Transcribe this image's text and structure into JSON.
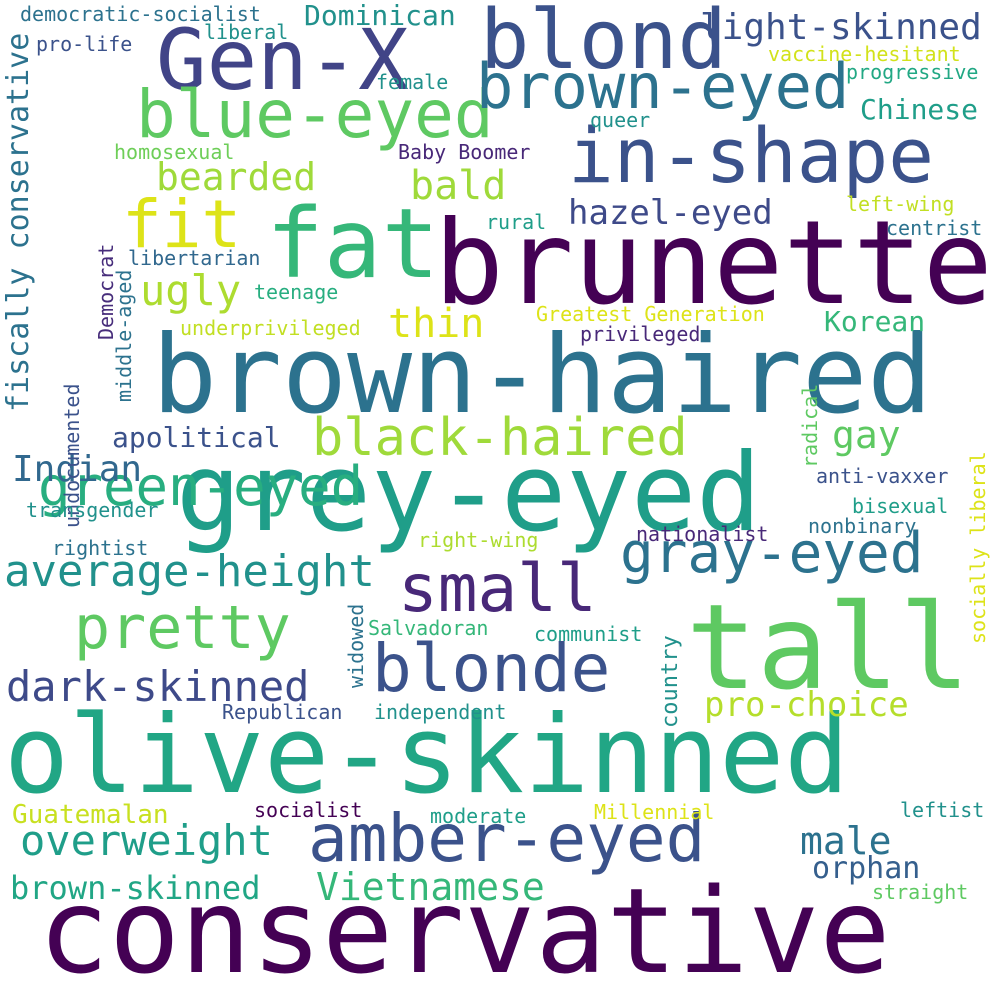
{
  "palette": {
    "purple_dark": "#440154",
    "indigo": "#3b528b",
    "blue_teal": "#2c728e",
    "teal": "#21918c",
    "green_teal": "#28ae80",
    "green": "#5ec962",
    "lime": "#addc30",
    "yellow": "#dde318",
    "background": "#ffffff"
  },
  "words": [
    {
      "text": "conservative",
      "color": "#440154"
    },
    {
      "text": "olive-skinned",
      "color": "#21a685"
    },
    {
      "text": "brown-haired",
      "color": "#2c728e"
    },
    {
      "text": "grey-eyed",
      "color": "#1f9e89"
    },
    {
      "text": "brunette",
      "color": "#440154"
    },
    {
      "text": "tall",
      "color": "#5ec962"
    },
    {
      "text": "fat",
      "color": "#35b779"
    },
    {
      "text": "blond",
      "color": "#3b528b"
    },
    {
      "text": "Gen-X",
      "color": "#414487"
    },
    {
      "text": "in-shape",
      "color": "#3b528b"
    },
    {
      "text": "blue-eyed",
      "color": "#5ec962"
    },
    {
      "text": "brown-eyed",
      "color": "#2c728e"
    },
    {
      "text": "fit",
      "color": "#dde318"
    },
    {
      "text": "amber-eyed",
      "color": "#3b528b"
    },
    {
      "text": "blonde",
      "color": "#3b528b"
    },
    {
      "text": "small",
      "color": "#482878"
    },
    {
      "text": "black-haired",
      "color": "#9fda3a"
    },
    {
      "text": "gray-eyed",
      "color": "#2c728e"
    },
    {
      "text": "pretty",
      "color": "#5ec962"
    },
    {
      "text": "green-eyed",
      "color": "#28ae80"
    },
    {
      "text": "average-height",
      "color": "#21918c"
    },
    {
      "text": "dark-skinned",
      "color": "#3e4a89"
    },
    {
      "text": "overweight",
      "color": "#1f9e89"
    },
    {
      "text": "Vietnamese",
      "color": "#35b779"
    },
    {
      "text": "brown-skinned",
      "color": "#21a685"
    },
    {
      "text": "bald",
      "color": "#9fda3a"
    },
    {
      "text": "bearded",
      "color": "#9fda3a"
    },
    {
      "text": "ugly",
      "color": "#addc30"
    },
    {
      "text": "thin",
      "color": "#dde318"
    },
    {
      "text": "hazel-eyed",
      "color": "#3e4a89"
    },
    {
      "text": "light-skinned",
      "color": "#3b528b"
    },
    {
      "text": "male",
      "color": "#2c728e"
    },
    {
      "text": "orphan",
      "color": "#355f8d"
    },
    {
      "text": "Indian",
      "color": "#31688e"
    },
    {
      "text": "gay",
      "color": "#5ec962"
    },
    {
      "text": "pro-choice",
      "color": "#b5de2b"
    },
    {
      "text": "fiscally conservative",
      "color": "#2c728e"
    },
    {
      "text": "Dominican",
      "color": "#21918c"
    },
    {
      "text": "Chinese",
      "color": "#1f9e89"
    },
    {
      "text": "Korean",
      "color": "#35b779"
    },
    {
      "text": "apolitical",
      "color": "#3b528b"
    },
    {
      "text": "Guatemalan",
      "color": "#c8e020"
    },
    {
      "text": "democratic-socialist",
      "color": "#2c728e"
    },
    {
      "text": "country",
      "color": "#21918c"
    },
    {
      "text": "communist",
      "color": "#1f9e89"
    },
    {
      "text": "pro-life",
      "color": "#3b528b"
    },
    {
      "text": "liberal",
      "color": "#21918c"
    },
    {
      "text": "female",
      "color": "#21918c"
    },
    {
      "text": "vaccine-hesitant",
      "color": "#d2e21b"
    },
    {
      "text": "progressive",
      "color": "#22a884"
    },
    {
      "text": "queer",
      "color": "#21918c"
    },
    {
      "text": "homosexual",
      "color": "#6ece58"
    },
    {
      "text": "Baby Boomer",
      "color": "#482878"
    },
    {
      "text": "rural",
      "color": "#1f9e89"
    },
    {
      "text": "left-wing",
      "color": "#c2df23"
    },
    {
      "text": "centrist",
      "color": "#2c728e"
    },
    {
      "text": "libertarian",
      "color": "#31688e"
    },
    {
      "text": "teenage",
      "color": "#28ae80"
    },
    {
      "text": "Democrat",
      "color": "#472d7b"
    },
    {
      "text": "middle-aged",
      "color": "#2c728e"
    },
    {
      "text": "underprivileged",
      "color": "#c2df23"
    },
    {
      "text": "Greatest Generation",
      "color": "#dde318"
    },
    {
      "text": "privileged",
      "color": "#482878"
    },
    {
      "text": "undocumented",
      "color": "#3b528b"
    },
    {
      "text": "radical",
      "color": "#5ec962"
    },
    {
      "text": "socially liberal",
      "color": "#dde318"
    },
    {
      "text": "anti-vaxxer",
      "color": "#3b528b"
    },
    {
      "text": "bisexual",
      "color": "#1f9e89"
    },
    {
      "text": "transgender",
      "color": "#21918c"
    },
    {
      "text": "nonbinary",
      "color": "#2c728e"
    },
    {
      "text": "nationalist",
      "color": "#482878"
    },
    {
      "text": "rightist",
      "color": "#2c728e"
    },
    {
      "text": "right-wing",
      "color": "#addc30"
    },
    {
      "text": "Salvadoran",
      "color": "#35b779"
    },
    {
      "text": "widowed",
      "color": "#2c728e"
    },
    {
      "text": "Republican",
      "color": "#3b528b"
    },
    {
      "text": "independent",
      "color": "#21918c"
    },
    {
      "text": "socialist",
      "color": "#440154"
    },
    {
      "text": "moderate",
      "color": "#1f9e89"
    },
    {
      "text": "Millennial",
      "color": "#dde318"
    },
    {
      "text": "leftist",
      "color": "#21918c"
    },
    {
      "text": "straight",
      "color": "#5ec962"
    }
  ]
}
